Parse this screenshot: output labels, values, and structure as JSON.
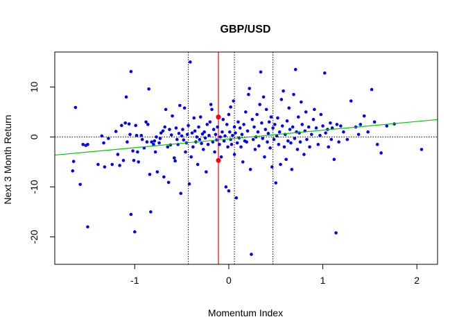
{
  "chart_data": {
    "type": "scatter",
    "title": "GBP/USD",
    "xlabel": "Momentum Index",
    "ylabel": "Next 3 Month Return",
    "xlim": [
      -1.85,
      2.22
    ],
    "ylim": [
      -25.5,
      17
    ],
    "xticks": [
      "-1",
      "0",
      "1",
      "2"
    ],
    "xtick_values": [
      -1,
      0,
      1,
      2
    ],
    "yticks": [
      "-20",
      "-10",
      "0",
      "10"
    ],
    "ytick_values": [
      -20,
      -10,
      0,
      10
    ],
    "grid": false,
    "colors": {
      "points": "#0000ff",
      "highlight": "#ff0000",
      "regression": "#00cc00",
      "current_line": "#ff0000",
      "reference_lines": "#000000"
    },
    "regression_line": {
      "intercept": -0.4,
      "slope": 1.75
    },
    "vertical_dotted_lines": [
      -0.43,
      0.06,
      0.47
    ],
    "current_value_line": -0.11,
    "highlight_points": [
      {
        "x": -0.11,
        "y": 4.0
      },
      {
        "x": -0.11,
        "y": -4.7
      }
    ],
    "horizontal_dotted_line": 0,
    "points": [
      {
        "x": -1.66,
        "y": -6.8
      },
      {
        "x": -1.65,
        "y": -4.9
      },
      {
        "x": -1.63,
        "y": 5.9
      },
      {
        "x": -1.58,
        "y": -9.5
      },
      {
        "x": -1.55,
        "y": -1.5
      },
      {
        "x": -1.52,
        "y": -1.7
      },
      {
        "x": -1.5,
        "y": -1.5
      },
      {
        "x": -1.5,
        "y": -18.0
      },
      {
        "x": -1.39,
        "y": -5.5
      },
      {
        "x": -1.35,
        "y": 0.2
      },
      {
        "x": -1.33,
        "y": -1.2
      },
      {
        "x": -1.32,
        "y": -6.0
      },
      {
        "x": -1.28,
        "y": -0.3
      },
      {
        "x": -1.24,
        "y": -5.5
      },
      {
        "x": -1.2,
        "y": 1.1
      },
      {
        "x": -1.18,
        "y": -3.5
      },
      {
        "x": -1.16,
        "y": -5.7
      },
      {
        "x": -1.14,
        "y": 2.3
      },
      {
        "x": -1.12,
        "y": -4.7
      },
      {
        "x": -1.1,
        "y": 2.8
      },
      {
        "x": -1.09,
        "y": 8.0
      },
      {
        "x": -1.08,
        "y": -1.0
      },
      {
        "x": -1.06,
        "y": 2.6
      },
      {
        "x": -1.05,
        "y": 0.5
      },
      {
        "x": -1.04,
        "y": 13.1
      },
      {
        "x": -1.04,
        "y": -15.5
      },
      {
        "x": -1.02,
        "y": -2.8
      },
      {
        "x": -1.01,
        "y": -4.7
      },
      {
        "x": -1.0,
        "y": -19.0
      },
      {
        "x": -0.99,
        "y": 2.3
      },
      {
        "x": -0.98,
        "y": 0.3
      },
      {
        "x": -0.97,
        "y": -3.0
      },
      {
        "x": -0.96,
        "y": -5.0
      },
      {
        "x": -0.93,
        "y": 0.3
      },
      {
        "x": -0.92,
        "y": -0.5
      },
      {
        "x": -0.9,
        "y": -2.2
      },
      {
        "x": -0.88,
        "y": 3.0
      },
      {
        "x": -0.87,
        "y": -1.0
      },
      {
        "x": -0.86,
        "y": 2.5
      },
      {
        "x": -0.85,
        "y": 9.6
      },
      {
        "x": -0.84,
        "y": -7.5
      },
      {
        "x": -0.83,
        "y": -15.0
      },
      {
        "x": -0.82,
        "y": -1.0
      },
      {
        "x": -0.8,
        "y": -1.5
      },
      {
        "x": -0.79,
        "y": -0.8
      },
      {
        "x": -0.78,
        "y": -3.0
      },
      {
        "x": -0.77,
        "y": 0.0
      },
      {
        "x": -0.76,
        "y": -7.0
      },
      {
        "x": -0.74,
        "y": -1.2
      },
      {
        "x": -0.73,
        "y": -0.3
      },
      {
        "x": -0.72,
        "y": 0.8
      },
      {
        "x": -0.7,
        "y": 1.2
      },
      {
        "x": -0.69,
        "y": -8.0
      },
      {
        "x": -0.68,
        "y": 2.0
      },
      {
        "x": -0.67,
        "y": 5.5
      },
      {
        "x": -0.65,
        "y": -2.0
      },
      {
        "x": -0.64,
        "y": -9.1
      },
      {
        "x": -0.63,
        "y": 1.5
      },
      {
        "x": -0.62,
        "y": -1.6
      },
      {
        "x": -0.61,
        "y": 0.4
      },
      {
        "x": -0.6,
        "y": 4.2
      },
      {
        "x": -0.58,
        "y": -4.2
      },
      {
        "x": -0.57,
        "y": -4.8
      },
      {
        "x": -0.56,
        "y": 1.8
      },
      {
        "x": -0.55,
        "y": -0.5
      },
      {
        "x": -0.54,
        "y": -1.5
      },
      {
        "x": -0.53,
        "y": 0.7
      },
      {
        "x": -0.52,
        "y": 6.3
      },
      {
        "x": -0.51,
        "y": -11.3
      },
      {
        "x": -0.5,
        "y": 0.2
      },
      {
        "x": -0.49,
        "y": 1.5
      },
      {
        "x": -0.48,
        "y": -0.6
      },
      {
        "x": -0.47,
        "y": 5.8
      },
      {
        "x": -0.46,
        "y": -3.0
      },
      {
        "x": -0.45,
        "y": -1.2
      },
      {
        "x": -0.44,
        "y": 0.5
      },
      {
        "x": -0.43,
        "y": 2.3
      },
      {
        "x": -0.42,
        "y": -9.4
      },
      {
        "x": -0.41,
        "y": 15.0
      },
      {
        "x": -0.4,
        "y": -4.0
      },
      {
        "x": -0.39,
        "y": 0.8
      },
      {
        "x": -0.38,
        "y": -2.0
      },
      {
        "x": -0.37,
        "y": 3.8
      },
      {
        "x": -0.36,
        "y": 1.2
      },
      {
        "x": -0.35,
        "y": -1.0
      },
      {
        "x": -0.34,
        "y": 0.0
      },
      {
        "x": -0.33,
        "y": -5.5
      },
      {
        "x": -0.32,
        "y": 2.0
      },
      {
        "x": -0.31,
        "y": -0.5
      },
      {
        "x": -0.3,
        "y": 4.0
      },
      {
        "x": -0.29,
        "y": -1.3
      },
      {
        "x": -0.28,
        "y": 0.6
      },
      {
        "x": -0.27,
        "y": -2.5
      },
      {
        "x": -0.26,
        "y": 1.0
      },
      {
        "x": -0.25,
        "y": -0.2
      },
      {
        "x": -0.24,
        "y": -7.0
      },
      {
        "x": -0.23,
        "y": 2.5
      },
      {
        "x": -0.22,
        "y": -1.5
      },
      {
        "x": -0.21,
        "y": 0.3
      },
      {
        "x": -0.2,
        "y": 3.0
      },
      {
        "x": -0.19,
        "y": 6.5
      },
      {
        "x": -0.18,
        "y": 5.5
      },
      {
        "x": -0.17,
        "y": -1.0
      },
      {
        "x": -0.16,
        "y": 1.5
      },
      {
        "x": -0.15,
        "y": -3.0
      },
      {
        "x": -0.14,
        "y": 0.5
      },
      {
        "x": -0.13,
        "y": -0.6
      },
      {
        "x": -0.12,
        "y": 2.0
      },
      {
        "x": -0.1,
        "y": -1.5
      },
      {
        "x": -0.09,
        "y": 0.0
      },
      {
        "x": -0.08,
        "y": -4.0
      },
      {
        "x": -0.07,
        "y": 1.0
      },
      {
        "x": -0.06,
        "y": 3.5
      },
      {
        "x": -0.05,
        "y": -0.8
      },
      {
        "x": -0.04,
        "y": 0.2
      },
      {
        "x": -0.03,
        "y": -10.0
      },
      {
        "x": -0.02,
        "y": 2.5
      },
      {
        "x": -0.01,
        "y": -2.0
      },
      {
        "x": 0.0,
        "y": 4.5
      },
      {
        "x": 0.0,
        "y": -10.8
      },
      {
        "x": 0.01,
        "y": 1.0
      },
      {
        "x": 0.02,
        "y": -0.5
      },
      {
        "x": 0.02,
        "y": 6.0
      },
      {
        "x": 0.03,
        "y": -1.5
      },
      {
        "x": 0.04,
        "y": 0.3
      },
      {
        "x": 0.05,
        "y": 7.2
      },
      {
        "x": 0.06,
        "y": 2.0
      },
      {
        "x": 0.06,
        "y": -3.5
      },
      {
        "x": 0.07,
        "y": 0.8
      },
      {
        "x": 0.08,
        "y": -12.2
      },
      {
        "x": 0.09,
        "y": -1.2
      },
      {
        "x": 0.1,
        "y": 3.0
      },
      {
        "x": 0.11,
        "y": -0.2
      },
      {
        "x": 0.12,
        "y": 1.8
      },
      {
        "x": 0.13,
        "y": -2.0
      },
      {
        "x": 0.14,
        "y": 0.5
      },
      {
        "x": 0.15,
        "y": -5.0
      },
      {
        "x": 0.16,
        "y": 2.5
      },
      {
        "x": 0.17,
        "y": -0.8
      },
      {
        "x": 0.18,
        "y": 5.0
      },
      {
        "x": 0.19,
        "y": -1.0
      },
      {
        "x": 0.2,
        "y": 1.2
      },
      {
        "x": 0.21,
        "y": 8.5
      },
      {
        "x": 0.22,
        "y": 9.7
      },
      {
        "x": 0.23,
        "y": -6.5
      },
      {
        "x": 0.24,
        "y": -23.5
      },
      {
        "x": 0.25,
        "y": 3.5
      },
      {
        "x": 0.26,
        "y": -0.5
      },
      {
        "x": 0.27,
        "y": 2.0
      },
      {
        "x": 0.28,
        "y": -2.5
      },
      {
        "x": 0.29,
        "y": 0.0
      },
      {
        "x": 0.3,
        "y": 4.5
      },
      {
        "x": 0.31,
        "y": 1.0
      },
      {
        "x": 0.32,
        "y": -1.8
      },
      {
        "x": 0.33,
        "y": 6.5
      },
      {
        "x": 0.34,
        "y": 13.0
      },
      {
        "x": 0.35,
        "y": 2.8
      },
      {
        "x": 0.36,
        "y": -0.3
      },
      {
        "x": 0.37,
        "y": 8.0
      },
      {
        "x": 0.38,
        "y": -4.0
      },
      {
        "x": 0.39,
        "y": 1.5
      },
      {
        "x": 0.4,
        "y": 5.5
      },
      {
        "x": 0.41,
        "y": -1.0
      },
      {
        "x": 0.42,
        "y": 0.7
      },
      {
        "x": 0.43,
        "y": 3.0
      },
      {
        "x": 0.44,
        "y": -2.2
      },
      {
        "x": 0.45,
        "y": 4.0
      },
      {
        "x": 0.46,
        "y": -6.0
      },
      {
        "x": 0.47,
        "y": 1.8
      },
      {
        "x": 0.48,
        "y": -0.5
      },
      {
        "x": 0.49,
        "y": 2.5
      },
      {
        "x": 0.5,
        "y": -9.2
      },
      {
        "x": 0.51,
        "y": 0.2
      },
      {
        "x": 0.52,
        "y": 3.8
      },
      {
        "x": 0.53,
        "y": -1.5
      },
      {
        "x": 0.54,
        "y": 1.0
      },
      {
        "x": 0.55,
        "y": -5.5
      },
      {
        "x": 0.56,
        "y": 7.5
      },
      {
        "x": 0.57,
        "y": 2.2
      },
      {
        "x": 0.58,
        "y": 9.2
      },
      {
        "x": 0.59,
        "y": -2.0
      },
      {
        "x": 0.6,
        "y": 0.5
      },
      {
        "x": 0.61,
        "y": -4.5
      },
      {
        "x": 0.62,
        "y": 3.2
      },
      {
        "x": 0.63,
        "y": -0.8
      },
      {
        "x": 0.64,
        "y": 5.8
      },
      {
        "x": 0.65,
        "y": 1.5
      },
      {
        "x": 0.66,
        "y": -1.2
      },
      {
        "x": 0.67,
        "y": -6.5
      },
      {
        "x": 0.68,
        "y": 2.0
      },
      {
        "x": 0.69,
        "y": 8.5
      },
      {
        "x": 0.7,
        "y": -0.3
      },
      {
        "x": 0.71,
        "y": 13.5
      },
      {
        "x": 0.72,
        "y": 1.0
      },
      {
        "x": 0.73,
        "y": -2.5
      },
      {
        "x": 0.74,
        "y": 4.0
      },
      {
        "x": 0.75,
        "y": 0.8
      },
      {
        "x": 0.76,
        "y": -1.0
      },
      {
        "x": 0.77,
        "y": 7.0
      },
      {
        "x": 0.78,
        "y": 2.5
      },
      {
        "x": 0.8,
        "y": -3.5
      },
      {
        "x": 0.81,
        "y": 1.2
      },
      {
        "x": 0.82,
        "y": 5.0
      },
      {
        "x": 0.83,
        "y": -0.5
      },
      {
        "x": 0.85,
        "y": 2.0
      },
      {
        "x": 0.86,
        "y": -2.0
      },
      {
        "x": 0.88,
        "y": 0.5
      },
      {
        "x": 0.9,
        "y": 3.5
      },
      {
        "x": 0.91,
        "y": 5.5
      },
      {
        "x": 0.93,
        "y": 1.8
      },
      {
        "x": 0.95,
        "y": -1.5
      },
      {
        "x": 0.97,
        "y": 0.3
      },
      {
        "x": 0.98,
        "y": 4.5
      },
      {
        "x": 1.0,
        "y": 2.2
      },
      {
        "x": 1.02,
        "y": 12.8
      },
      {
        "x": 1.03,
        "y": 0.8
      },
      {
        "x": 1.05,
        "y": 1.5
      },
      {
        "x": 1.06,
        "y": -2.0
      },
      {
        "x": 1.08,
        "y": 2.8
      },
      {
        "x": 1.09,
        "y": -0.5
      },
      {
        "x": 1.1,
        "y": 1.8
      },
      {
        "x": 1.12,
        "y": -4.5
      },
      {
        "x": 1.14,
        "y": -19.2
      },
      {
        "x": 1.15,
        "y": 2.5
      },
      {
        "x": 1.17,
        "y": -1.0
      },
      {
        "x": 1.19,
        "y": 2.2
      },
      {
        "x": 1.22,
        "y": 1.0
      },
      {
        "x": 1.26,
        "y": -0.5
      },
      {
        "x": 1.3,
        "y": 7.2
      },
      {
        "x": 1.35,
        "y": 2.0
      },
      {
        "x": 1.38,
        "y": 0.5
      },
      {
        "x": 1.4,
        "y": 2.5
      },
      {
        "x": 1.44,
        "y": 4.2
      },
      {
        "x": 1.48,
        "y": 1.0
      },
      {
        "x": 1.52,
        "y": 9.5
      },
      {
        "x": 1.55,
        "y": 3.0
      },
      {
        "x": 1.58,
        "y": -1.5
      },
      {
        "x": 1.62,
        "y": -3.2
      },
      {
        "x": 1.68,
        "y": 2.2
      },
      {
        "x": 1.76,
        "y": 2.6
      },
      {
        "x": 2.05,
        "y": -2.5
      }
    ]
  }
}
